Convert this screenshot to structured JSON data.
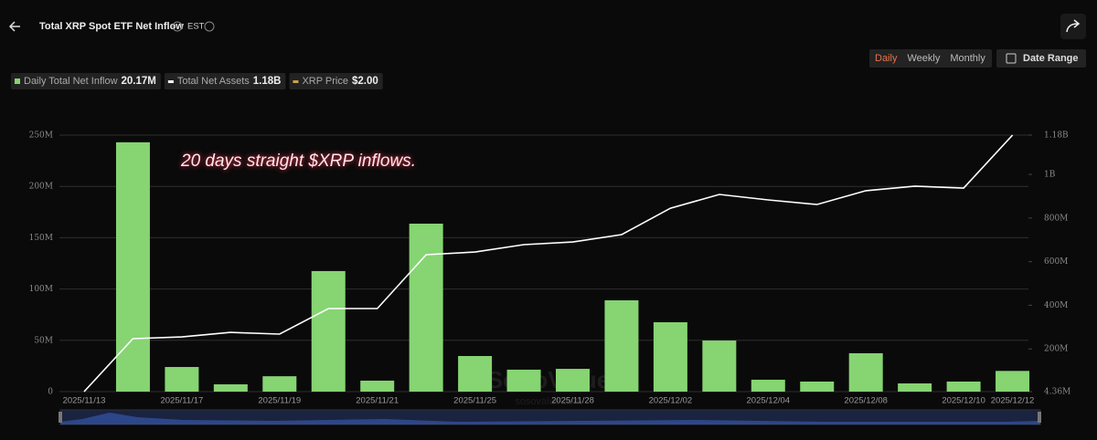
{
  "ui": {
    "title": "Total XRP Spot ETF Net Inflow",
    "timezone": "EST",
    "tabs": [
      "Daily",
      "Weekly",
      "Monthly"
    ],
    "active_tab": "Daily",
    "date_range": "Date Range",
    "watermark": "SoSoValue",
    "watermark_url": "sosovalue.com"
  },
  "chart_data": {
    "type": "combo",
    "annotation": "20 days straight $XRP inflows.",
    "categories": [
      "2025/11/13",
      null,
      "2025/11/17",
      null,
      "2025/11/19",
      null,
      "2025/11/21",
      null,
      "2025/11/25",
      null,
      "2025/11/28",
      null,
      "2025/12/02",
      null,
      "2025/12/04",
      null,
      "2025/12/08",
      null,
      "2025/12/10",
      "2025/12/12"
    ],
    "series": [
      {
        "name": "Daily Total Net Inflow",
        "type": "bar",
        "color": "#86d472",
        "latest_label": "20.17M",
        "values": [
          0,
          243,
          24,
          7.1,
          15,
          117.5,
          10.7,
          163.7,
          34.7,
          21.4,
          22.2,
          89,
          67.6,
          49.8,
          11.6,
          9.8,
          37.4,
          8,
          9.8,
          20.17
        ]
      },
      {
        "name": "Total Net Assets",
        "type": "line",
        "axis": "y2",
        "color": "#ffffff",
        "latest_label": "1.18B",
        "values": [
          4.36,
          247,
          255,
          276,
          268,
          385,
          385,
          632,
          644,
          678,
          690,
          724,
          845,
          908,
          883,
          862,
          925,
          946,
          937,
          1180
        ]
      },
      {
        "name": "XRP Price",
        "type": "price",
        "color": "#c9a24a",
        "latest_label": "$2.00"
      }
    ],
    "ylim": [
      0,
      250
    ],
    "yticks": [
      0,
      {
        "value": 50,
        "label": "50M"
      },
      {
        "value": 100,
        "label": "100M"
      },
      {
        "value": 150,
        "label": "150M"
      },
      {
        "value": 200,
        "label": "200M"
      },
      {
        "value": 250,
        "label": "250M"
      }
    ],
    "y2lim": [
      4.36,
      1180
    ],
    "y2ticks": [
      {
        "value": 4.36,
        "label": "4.36M"
      },
      {
        "value": 200,
        "label": "200M"
      },
      {
        "value": 400,
        "label": "400M"
      },
      {
        "value": 600,
        "label": "600M"
      },
      {
        "value": 800,
        "label": "800M"
      },
      {
        "value": 1000,
        "label": "1B"
      },
      {
        "value": 1180,
        "label": "1.18B"
      }
    ],
    "grid": true
  }
}
